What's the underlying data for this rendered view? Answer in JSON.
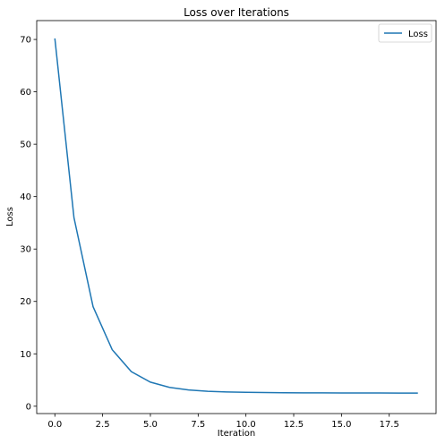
{
  "chart_data": {
    "type": "line",
    "title": "Loss over Iterations",
    "xlabel": "Iteration",
    "ylabel": "Loss",
    "xlim": [
      -0.95,
      19.95
    ],
    "ylim": [
      -1.4,
      73.6
    ],
    "xticks": [
      0,
      2.5,
      5,
      7.5,
      10,
      12.5,
      15,
      17.5
    ],
    "xtick_labels": [
      "0.0",
      "2.5",
      "5.0",
      "7.5",
      "10.0",
      "12.5",
      "15.0",
      "17.5"
    ],
    "yticks": [
      0,
      10,
      20,
      30,
      40,
      50,
      60,
      70
    ],
    "ytick_labels": [
      "0",
      "10",
      "20",
      "30",
      "40",
      "50",
      "60",
      "70"
    ],
    "grid": false,
    "legend_position": "top-right",
    "series": [
      {
        "name": "Loss",
        "color": "#1f77b4",
        "x": [
          0,
          1,
          2,
          3,
          4,
          5,
          6,
          7,
          8,
          9,
          10,
          11,
          12,
          13,
          14,
          15,
          16,
          17,
          18,
          19
        ],
        "y": [
          70.2,
          36.0,
          19.0,
          10.8,
          6.6,
          4.6,
          3.6,
          3.1,
          2.85,
          2.72,
          2.65,
          2.61,
          2.58,
          2.56,
          2.55,
          2.54,
          2.53,
          2.52,
          2.51,
          2.5
        ]
      }
    ]
  }
}
